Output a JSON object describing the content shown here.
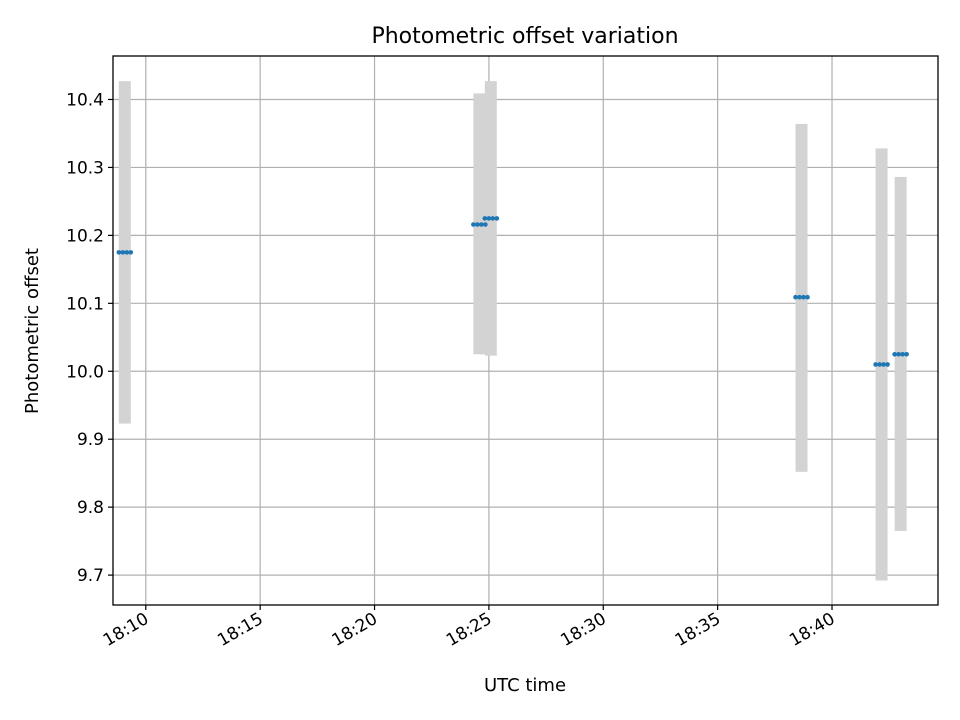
{
  "chart_data": {
    "type": "scatter",
    "title": "Photometric offset variation",
    "xlabel": "UTC time",
    "ylabel": "Photometric offset",
    "xlim": [
      "18:08:34",
      "18:44:38"
    ],
    "ylim": [
      9.656,
      10.464
    ],
    "grid": true,
    "x_ticks": [
      "18:10",
      "18:15",
      "18:20",
      "18:25",
      "18:30",
      "18:35",
      "18:40"
    ],
    "y_ticks": [
      "9.7",
      "9.8",
      "9.9",
      "10.0",
      "10.1",
      "10.2",
      "10.3",
      "10.4"
    ],
    "colors": {
      "points": "#1f77b4",
      "error_bars": "#d3d3d3",
      "grid": "#b0b0b0"
    },
    "points": [
      {
        "x": "18:09:05",
        "y": 10.175,
        "low": 9.923,
        "high": 10.427
      },
      {
        "x": "18:24:35",
        "y": 10.216,
        "low": 10.025,
        "high": 10.409
      },
      {
        "x": "18:25:05",
        "y": 10.225,
        "low": 10.023,
        "high": 10.427
      },
      {
        "x": "18:38:40",
        "y": 10.109,
        "low": 9.852,
        "high": 10.364
      },
      {
        "x": "18:42:10",
        "y": 10.01,
        "low": 9.692,
        "high": 10.328
      },
      {
        "x": "18:43:00",
        "y": 10.025,
        "low": 9.765,
        "high": 10.286
      }
    ]
  }
}
